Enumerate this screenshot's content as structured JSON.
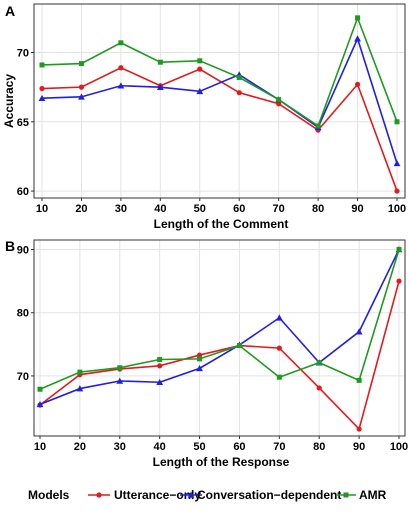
{
  "legend": {
    "title": "Models",
    "entries": [
      "Utterance−only",
      "Conversation−dependent",
      "AMR"
    ]
  },
  "colors": {
    "Utterance−only": "#e41a1c",
    "Conversation−dependent": "#1f1fe8",
    "AMR": "#1f9a1f"
  },
  "chart_data": [
    {
      "type": "line",
      "panel": "A",
      "xlabel": "Length of the Comment",
      "ylabel": "Accuracy",
      "x": [
        10,
        20,
        30,
        40,
        50,
        60,
        70,
        80,
        90,
        100
      ],
      "xticks": [
        10,
        20,
        30,
        40,
        50,
        60,
        70,
        80,
        90,
        100
      ],
      "yticks": [
        60,
        65,
        70
      ],
      "xlim": [
        10,
        100
      ],
      "ylim": [
        59.5,
        73.5
      ],
      "grid": true,
      "series": [
        {
          "name": "Utterance−only",
          "values": [
            67.4,
            67.5,
            68.9,
            67.6,
            68.8,
            67.1,
            66.3,
            64.4,
            67.7,
            60.0
          ]
        },
        {
          "name": "Conversation−dependent",
          "values": [
            66.7,
            66.8,
            67.6,
            67.5,
            67.2,
            68.4,
            66.6,
            64.6,
            71.0,
            62.0
          ]
        },
        {
          "name": "AMR",
          "values": [
            69.1,
            69.2,
            70.7,
            69.3,
            69.4,
            68.2,
            66.6,
            64.7,
            72.5,
            65.0
          ]
        }
      ]
    },
    {
      "type": "line",
      "panel": "B",
      "xlabel": "Length of the Response",
      "ylabel": "",
      "x": [
        10,
        20,
        30,
        40,
        50,
        60,
        70,
        80,
        90,
        100
      ],
      "xticks": [
        10,
        20,
        30,
        40,
        50,
        60,
        70,
        80,
        90,
        100
      ],
      "yticks": [
        70,
        80,
        90
      ],
      "xlim": [
        10,
        100
      ],
      "ylim": [
        60.5,
        91.5
      ],
      "grid": true,
      "series": [
        {
          "name": "Utterance−only",
          "values": [
            65.4,
            70.2,
            71.1,
            71.6,
            73.3,
            74.8,
            74.4,
            68.1,
            61.6,
            85.0
          ]
        },
        {
          "name": "Conversation−dependent",
          "values": [
            65.5,
            68.0,
            69.2,
            69.0,
            71.2,
            74.9,
            79.2,
            72.1,
            77.0,
            90.0
          ]
        },
        {
          "name": "AMR",
          "values": [
            67.9,
            70.6,
            71.3,
            72.6,
            72.7,
            74.8,
            69.8,
            72.1,
            69.3,
            90.0
          ]
        }
      ]
    }
  ]
}
